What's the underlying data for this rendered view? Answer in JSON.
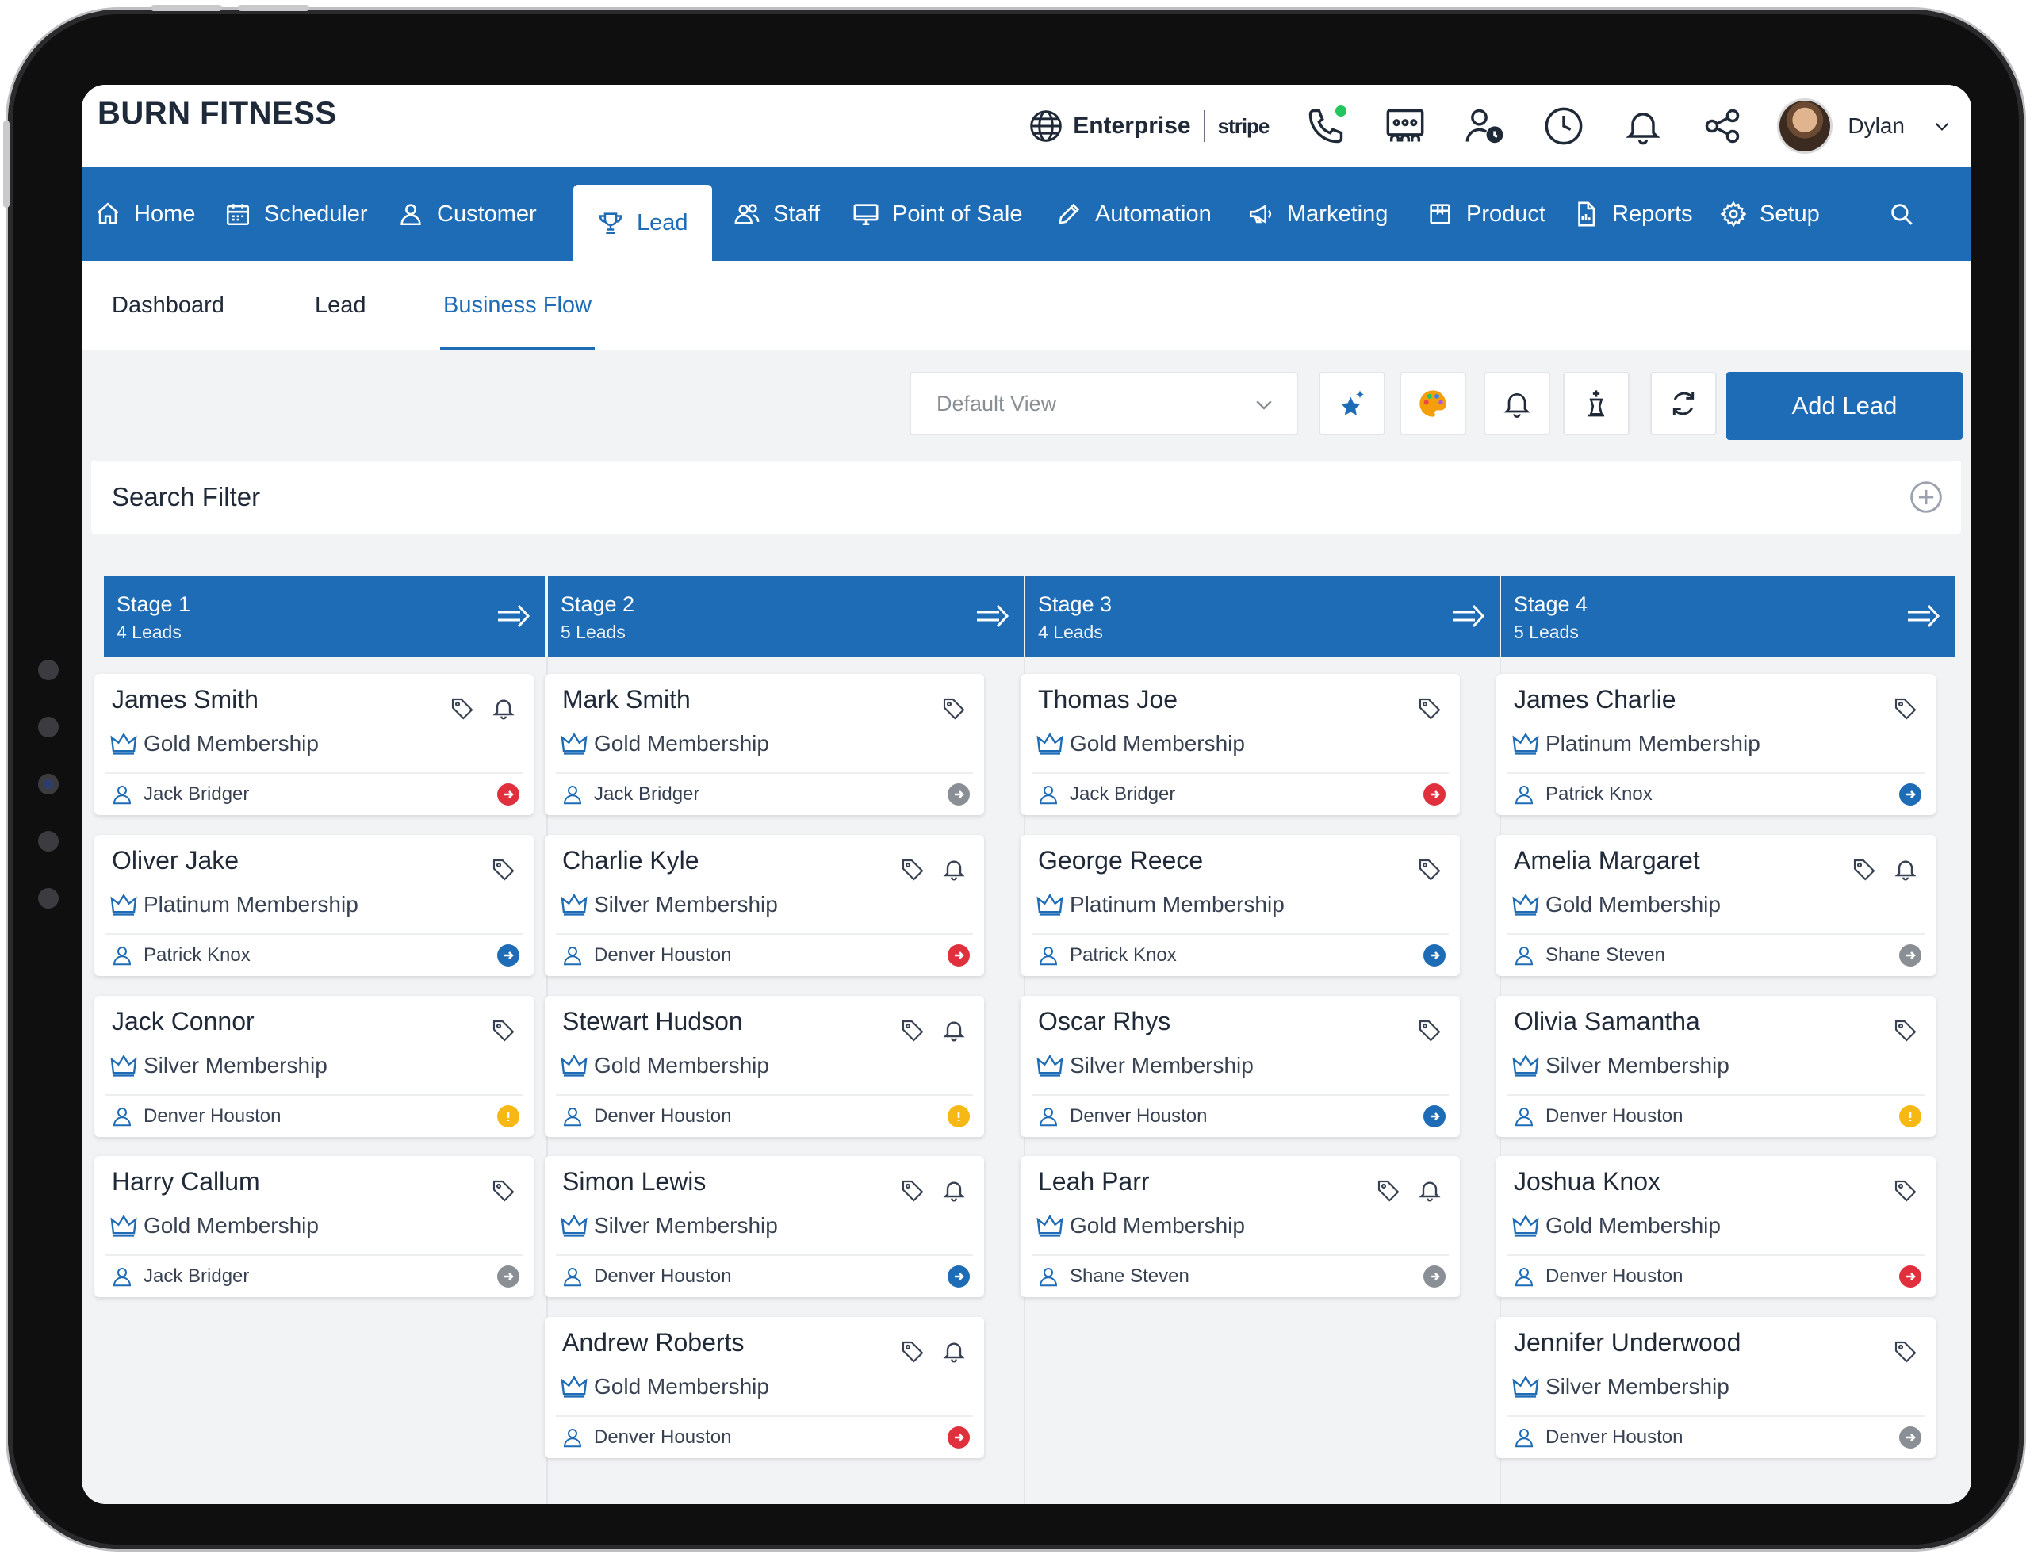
{
  "colors": {
    "primary": "#1f6cb6",
    "status_red": "#e0303d",
    "status_blue": "#1f6cb6",
    "status_grey": "#8a8f96",
    "status_yellow": "#f5b814",
    "online_green": "#22c55e"
  },
  "header": {
    "brand": "BURN FITNESS",
    "plan": "Enterprise",
    "payment": "stripe",
    "user_name": "Dylan",
    "icons": [
      "globe-icon",
      "phone-icon",
      "kiosk-icon",
      "user-clock-icon",
      "clock-icon",
      "bell-icon",
      "share-icon"
    ]
  },
  "nav": {
    "items": [
      {
        "label": "Home",
        "icon": "home-icon"
      },
      {
        "label": "Scheduler",
        "icon": "calendar-icon"
      },
      {
        "label": "Customer",
        "icon": "user-icon"
      },
      {
        "label": "Lead",
        "icon": "trophy-icon",
        "active": true
      },
      {
        "label": "Staff",
        "icon": "users-icon"
      },
      {
        "label": "Point of Sale",
        "icon": "monitor-icon"
      },
      {
        "label": "Automation",
        "icon": "pen-icon"
      },
      {
        "label": "Marketing",
        "icon": "megaphone-icon"
      },
      {
        "label": "Product",
        "icon": "box-icon"
      },
      {
        "label": "Reports",
        "icon": "report-icon"
      },
      {
        "label": "Setup",
        "icon": "gear-icon"
      }
    ]
  },
  "subtabs": {
    "items": [
      {
        "label": "Dashboard"
      },
      {
        "label": "Lead"
      },
      {
        "label": "Business Flow",
        "active": true
      }
    ]
  },
  "toolbar": {
    "view_select": "Default View",
    "add_label": "Add Lead",
    "icons": [
      "sparkle-star-icon",
      "palette-icon",
      "bell-icon",
      "chess-king-icon",
      "refresh-icon"
    ]
  },
  "search_filter": {
    "label": "Search Filter"
  },
  "stages": [
    {
      "title": "Stage 1",
      "count": "4 Leads",
      "cards": [
        {
          "name": "James Smith",
          "membership": "Gold Membership",
          "staff": "Jack Bridger",
          "bell": true,
          "status": "red"
        },
        {
          "name": "Oliver Jake",
          "membership": "Platinum Membership",
          "staff": "Patrick Knox",
          "bell": false,
          "status": "blue"
        },
        {
          "name": "Jack Connor",
          "membership": "Silver Membership",
          "staff": "Denver Houston",
          "bell": false,
          "status": "yellow"
        },
        {
          "name": "Harry Callum",
          "membership": "Gold Membership",
          "staff": "Jack Bridger",
          "bell": false,
          "status": "grey"
        }
      ]
    },
    {
      "title": "Stage 2",
      "count": "5 Leads",
      "cards": [
        {
          "name": "Mark Smith",
          "membership": "Gold Membership",
          "staff": "Jack Bridger",
          "bell": false,
          "status": "grey"
        },
        {
          "name": "Charlie Kyle",
          "membership": "Silver Membership",
          "staff": "Denver Houston",
          "bell": true,
          "status": "red"
        },
        {
          "name": "Stewart Hudson",
          "membership": "Gold Membership",
          "staff": "Denver Houston",
          "bell": true,
          "status": "yellow"
        },
        {
          "name": "Simon Lewis",
          "membership": "Silver Membership",
          "staff": "Denver Houston",
          "bell": true,
          "status": "blue"
        },
        {
          "name": "Andrew Roberts",
          "membership": "Gold Membership",
          "staff": "Denver Houston",
          "bell": true,
          "status": "red"
        }
      ]
    },
    {
      "title": "Stage 3",
      "count": "4 Leads",
      "cards": [
        {
          "name": "Thomas Joe",
          "membership": "Gold Membership",
          "staff": "Jack Bridger",
          "bell": false,
          "status": "red"
        },
        {
          "name": "George Reece",
          "membership": "Platinum Membership",
          "staff": "Patrick Knox",
          "bell": false,
          "status": "blue"
        },
        {
          "name": "Oscar Rhys",
          "membership": "Silver Membership",
          "staff": "Denver Houston",
          "bell": false,
          "status": "blue"
        },
        {
          "name": "Leah Parr",
          "membership": "Gold Membership",
          "staff": "Shane Steven",
          "bell": true,
          "status": "grey"
        }
      ]
    },
    {
      "title": "Stage 4",
      "count": "5 Leads",
      "cards": [
        {
          "name": "James Charlie",
          "membership": "Platinum Membership",
          "staff": "Patrick Knox",
          "bell": false,
          "status": "blue"
        },
        {
          "name": "Amelia Margaret",
          "membership": "Gold Membership",
          "staff": "Shane Steven",
          "bell": true,
          "status": "grey"
        },
        {
          "name": "Olivia Samantha",
          "membership": "Silver Membership",
          "staff": "Denver Houston",
          "bell": false,
          "status": "yellow"
        },
        {
          "name": "Joshua Knox",
          "membership": "Gold Membership",
          "staff": "Denver Houston",
          "bell": false,
          "status": "red"
        },
        {
          "name": "Jennifer Underwood",
          "membership": "Silver Membership",
          "staff": "Denver Houston",
          "bell": false,
          "status": "grey"
        }
      ]
    }
  ]
}
